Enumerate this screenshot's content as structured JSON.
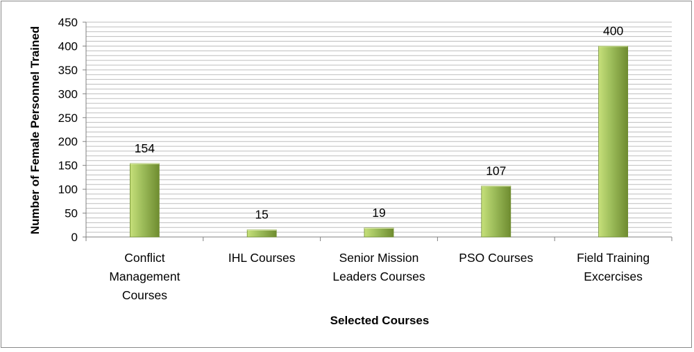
{
  "chart_data": {
    "type": "bar",
    "categories": [
      [
        "Conflict",
        "Management",
        "Courses"
      ],
      [
        "IHL Courses"
      ],
      [
        "Senior Mission",
        "Leaders Courses"
      ],
      [
        "PSO Courses"
      ],
      [
        "Field Training",
        "Excercises"
      ]
    ],
    "values": [
      154,
      15,
      19,
      107,
      400
    ],
    "data_labels": [
      "154",
      "15",
      "19",
      "107",
      "400"
    ],
    "xlabel": "Selected Courses",
    "ylabel": "Number of Female Personnel Trained",
    "ylim": [
      0,
      450
    ],
    "yticks": [
      "0",
      "50",
      "100",
      "150",
      "200",
      "250",
      "300",
      "350",
      "400",
      "450"
    ],
    "grid": true,
    "legend": "none",
    "colors": {
      "bar_light": "#c6e07a",
      "bar_mid": "#9bbb59",
      "bar_dark": "#6f8c30",
      "grid": "#bdbdbd",
      "axis": "#808080"
    }
  }
}
